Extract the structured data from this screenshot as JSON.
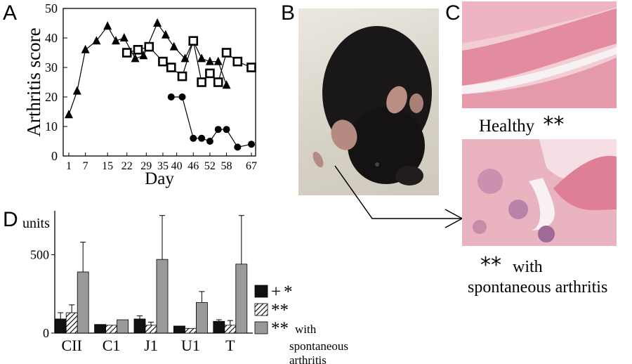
{
  "panels": {
    "a": "A",
    "b": "B",
    "c": "C",
    "d": "D"
  },
  "chart_data": [
    {
      "type": "line",
      "panel": "A",
      "title": "",
      "xlabel": "Day",
      "ylabel": "Arthritis score",
      "x_ticks": [
        "1",
        "7",
        "15",
        "22",
        "29",
        "35",
        "40",
        "46",
        "52",
        "58",
        "67"
      ],
      "y_ticks": [
        "0",
        "10",
        "20",
        "30",
        "40",
        "50"
      ],
      "ylim": [
        0,
        50
      ],
      "grid": false,
      "series": [
        {
          "marker": "triangle",
          "points": [
            [
              1,
              14
            ],
            [
              4,
              22
            ],
            [
              7,
              36
            ],
            [
              11,
              39
            ],
            [
              15,
              44
            ],
            [
              18,
              39
            ],
            [
              21,
              40
            ],
            [
              25,
              33
            ],
            [
              28,
              34
            ],
            [
              33,
              45
            ],
            [
              36,
              41
            ],
            [
              39,
              37
            ],
            [
              43,
              33
            ],
            [
              46,
              39
            ],
            [
              49,
              33
            ],
            [
              52,
              32
            ],
            [
              55,
              32
            ],
            [
              58,
              24
            ]
          ]
        },
        {
          "marker": "open-square",
          "points": [
            [
              22,
              35
            ],
            [
              26,
              36
            ],
            [
              30,
              37
            ],
            [
              35,
              32
            ],
            [
              38,
              30
            ],
            [
              42,
              27
            ],
            [
              46,
              39
            ],
            [
              49,
              25
            ],
            [
              52,
              28
            ],
            [
              55,
              25
            ],
            [
              58,
              35
            ],
            [
              62,
              32
            ],
            [
              67,
              30
            ]
          ]
        },
        {
          "marker": "filled-circle",
          "points": [
            [
              38,
              20
            ],
            [
              42,
              20
            ],
            [
              46,
              6
            ],
            [
              49,
              6
            ],
            [
              52,
              5
            ],
            [
              55,
              9
            ],
            [
              58,
              9
            ],
            [
              62,
              3
            ],
            [
              67,
              4
            ]
          ]
        }
      ]
    },
    {
      "type": "bar",
      "panel": "D",
      "title": "",
      "ylabel": "units",
      "y_ticks": [
        "0",
        "500"
      ],
      "ylim": [
        0,
        780
      ],
      "categories": [
        "CII",
        "C1",
        "J1",
        "U1",
        "T"
      ],
      "grid": false,
      "series": [
        {
          "name": "+*",
          "fill": "black",
          "values": [
            90,
            55,
            90,
            45,
            75
          ],
          "errors": [
            40,
            0,
            20,
            0,
            10
          ]
        },
        {
          "name": "**",
          "fill": "hatched",
          "values": [
            130,
            50,
            50,
            30,
            50
          ],
          "errors": [
            50,
            0,
            20,
            0,
            30
          ]
        },
        {
          "name": "**with spontaneous arthritis",
          "fill": "gray",
          "values": [
            390,
            85,
            470,
            195,
            440
          ],
          "errors": [
            190,
            0,
            280,
            70,
            310
          ]
        }
      ],
      "legend": {
        "placement": "right",
        "entries": [
          {
            "symbol": "+",
            "mark": "*"
          },
          {
            "symbol": "",
            "mark": "**"
          },
          {
            "symbol": "",
            "mark": "**",
            "text_lines": [
              "with",
              "spontaneous",
              "arthritis"
            ]
          }
        ]
      }
    }
  ],
  "panel_b": {
    "image": "black mouse photograph"
  },
  "panel_c": {
    "top_image": "healthy joint histology",
    "top_caption_text": "Healthy",
    "top_caption_mark": "**",
    "bottom_image": "arthritic joint histology",
    "bottom_caption_mark": "**",
    "bottom_caption_text_1": "with",
    "bottom_caption_text_2": "spontaneous arthritis"
  },
  "colors": {
    "bar_black": "#111111",
    "bar_gray": "#9a9a9a",
    "histology_pink": "#e7a3b4",
    "photo_bg": "#d9d4ca"
  }
}
